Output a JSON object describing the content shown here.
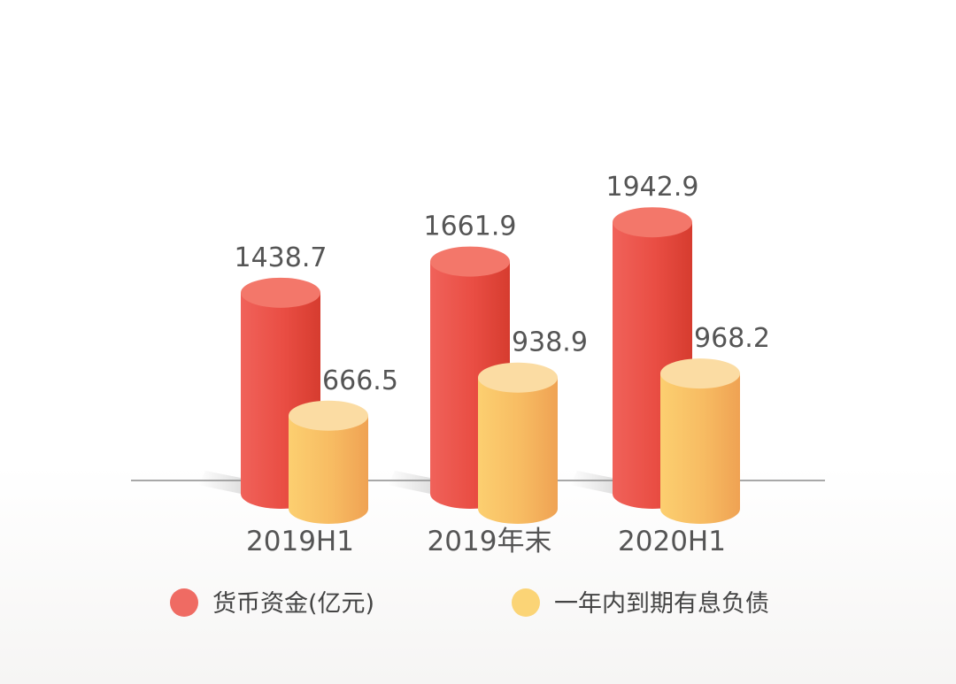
{
  "chart_data": {
    "type": "bar",
    "categories": [
      "2019H1",
      "2019年末",
      "2020H1"
    ],
    "series": [
      {
        "name": "货币资金(亿元)",
        "values": [
          1438.7,
          1661.9,
          1942.9
        ],
        "color": "#e94d43",
        "top_color": "#f3776a"
      },
      {
        "name": "一年内到期有息负债",
        "values": [
          666.5,
          938.9,
          968.2
        ],
        "color": "#f5b45e",
        "top_color": "#fbdca3"
      }
    ],
    "value_labels": [
      "1438.7",
      "1661.9",
      "1942.9",
      "666.5",
      "938.9",
      "968.2"
    ],
    "title": "",
    "xlabel": "",
    "ylabel": "",
    "ylim": [
      0,
      2050
    ],
    "grid": false,
    "style": "3d-cylinder",
    "legend_position": "bottom"
  }
}
